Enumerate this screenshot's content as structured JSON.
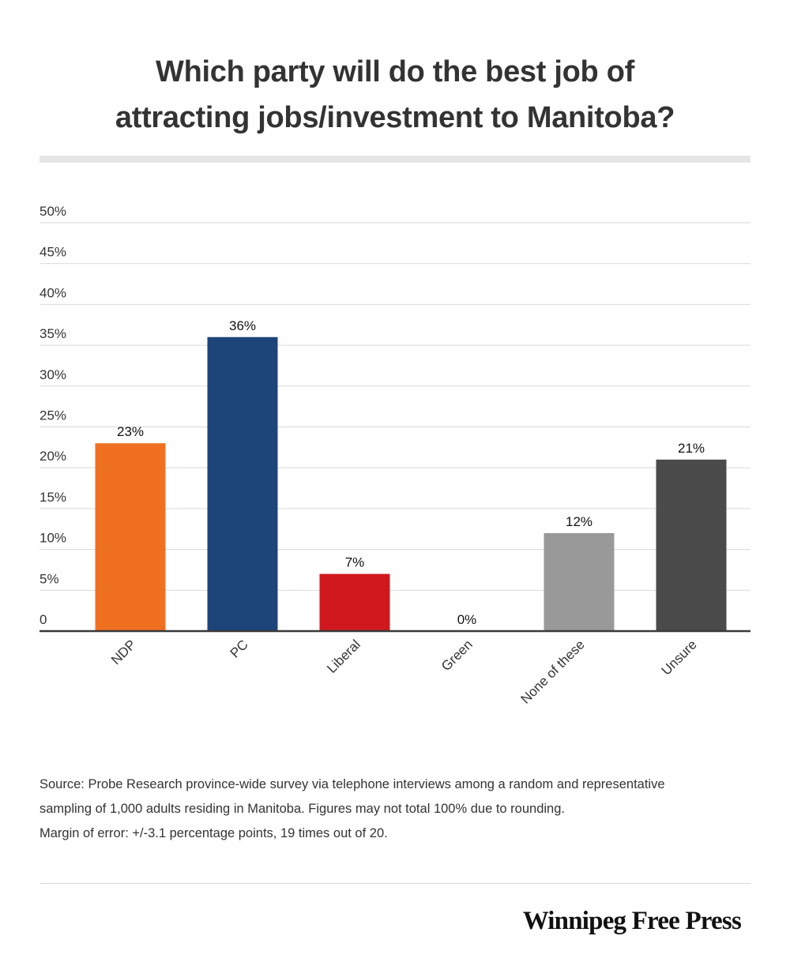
{
  "chart_data": {
    "type": "bar",
    "title": "Which party will do the best job of attracting jobs/investment to Manitoba?",
    "title_lines": [
      "Which party will do the best job of",
      "attracting jobs/investment to Manitoba?"
    ],
    "categories": [
      "NDP",
      "PC",
      "Liberal",
      "Green",
      "None of these",
      "Unsure"
    ],
    "values": [
      23,
      36,
      7,
      0,
      12,
      21
    ],
    "data_labels": [
      "23%",
      "36%",
      "7%",
      "0%",
      "12%",
      "21%"
    ],
    "bar_colors": [
      "#f07022",
      "#1d4579",
      "#d0191e",
      "#4a4a4a",
      "#999999",
      "#4b4b4b"
    ],
    "ylim": [
      0,
      50
    ],
    "yticks": [
      0,
      5,
      10,
      15,
      20,
      25,
      30,
      35,
      40,
      45,
      50
    ],
    "ytick_labels": [
      "0",
      "5%",
      "10%",
      "15%",
      "20%",
      "25%",
      "30%",
      "35%",
      "40%",
      "45%",
      "50%"
    ],
    "xlabel": "",
    "ylabel": "",
    "grid": true,
    "legend": null
  },
  "source": {
    "lines": [
      "Source:  Probe Research province-wide survey via telephone interviews among a random and representative",
      "sampling of 1,000 adults residing in Manitoba. Figures may not total 100% due to rounding.",
      "Margin of error: +/-3.1 percentage points, 19 times out of 20."
    ]
  },
  "brand": "Winnipeg Free Press"
}
